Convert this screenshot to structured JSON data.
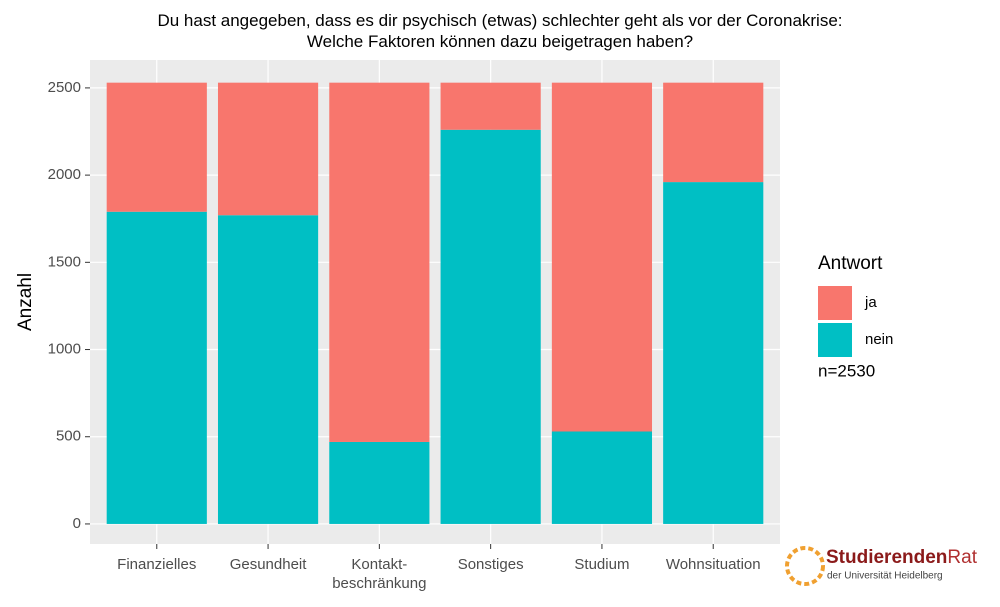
{
  "chart_data": {
    "type": "stacked_bar",
    "title": "Du hast angegeben, dass es dir psychisch (etwas) schlechter geht als vor der Coronakrise:\nWelche Faktoren können dazu beigetragen haben?",
    "y_label": "Anzahl",
    "categories": [
      "Finanzielles",
      "Gesundheit",
      "Kontakt-\nbeschränkung",
      "Sonstiges",
      "Studium",
      "Wohnsituation"
    ],
    "series": [
      {
        "name": "nein",
        "color": "#00bfc4",
        "values": [
          1790,
          1770,
          470,
          2260,
          530,
          1960
        ]
      },
      {
        "name": "ja",
        "color": "#f8766d",
        "values": [
          740,
          760,
          2060,
          270,
          2000,
          570
        ]
      }
    ],
    "legend_title": "Antwort",
    "legend_order": [
      "ja",
      "nein"
    ],
    "annotation": "n=2530",
    "ylim": [
      -115,
      2660
    ],
    "yticks": [
      0,
      500,
      1000,
      1500,
      2000,
      2500
    ],
    "grid": true,
    "logo": {
      "name_part1": "Studierenden",
      "name_part2": "Rat",
      "subtitle": "der Universität Heidelberg"
    }
  }
}
